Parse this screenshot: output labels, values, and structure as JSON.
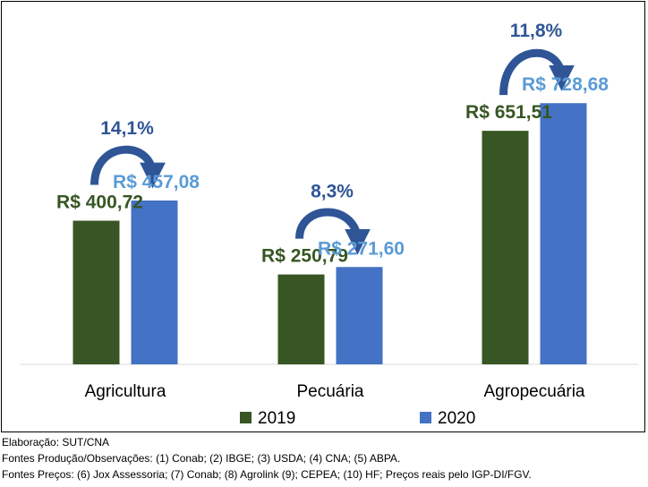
{
  "chart_data": {
    "type": "bar",
    "categories": [
      "Agricultura",
      "Pecuária",
      "Agropecuária"
    ],
    "series": [
      {
        "name": "2019",
        "color": "#375623",
        "values": [
          400.72,
          250.79,
          651.51
        ],
        "labels": [
          "R$ 400,72",
          "R$ 250,79",
          "R$ 651,51"
        ]
      },
      {
        "name": "2020",
        "color": "#4472C4",
        "values": [
          457.08,
          271.6,
          728.68
        ],
        "labels": [
          "R$ 457,08",
          "R$ 271,60",
          "R$ 728,68"
        ]
      }
    ],
    "growth_labels": [
      "14,1%",
      "8,3%",
      "11,8%"
    ],
    "growth_color": "#2F5597",
    "label_color_2019": "#375623",
    "label_color_2020": "#5B9BD5",
    "ylim": [
      0,
      780
    ],
    "grid": false,
    "legend_position": "bottom",
    "title": "",
    "xlabel": "",
    "ylabel": ""
  },
  "footer": {
    "line1": "Elaboração: SUT/CNA",
    "line2": "Fontes Produção/Observações: (1) Conab; (2) IBGE; (3) USDA; (4) CNA; (5) ABPA.",
    "line3": "Fontes Preços: (6) Jox Assessoria; (7) Conab; (8) Agrolink (9); CEPEA; (10) HF; Preços reais pelo IGP-DI/FGV."
  }
}
